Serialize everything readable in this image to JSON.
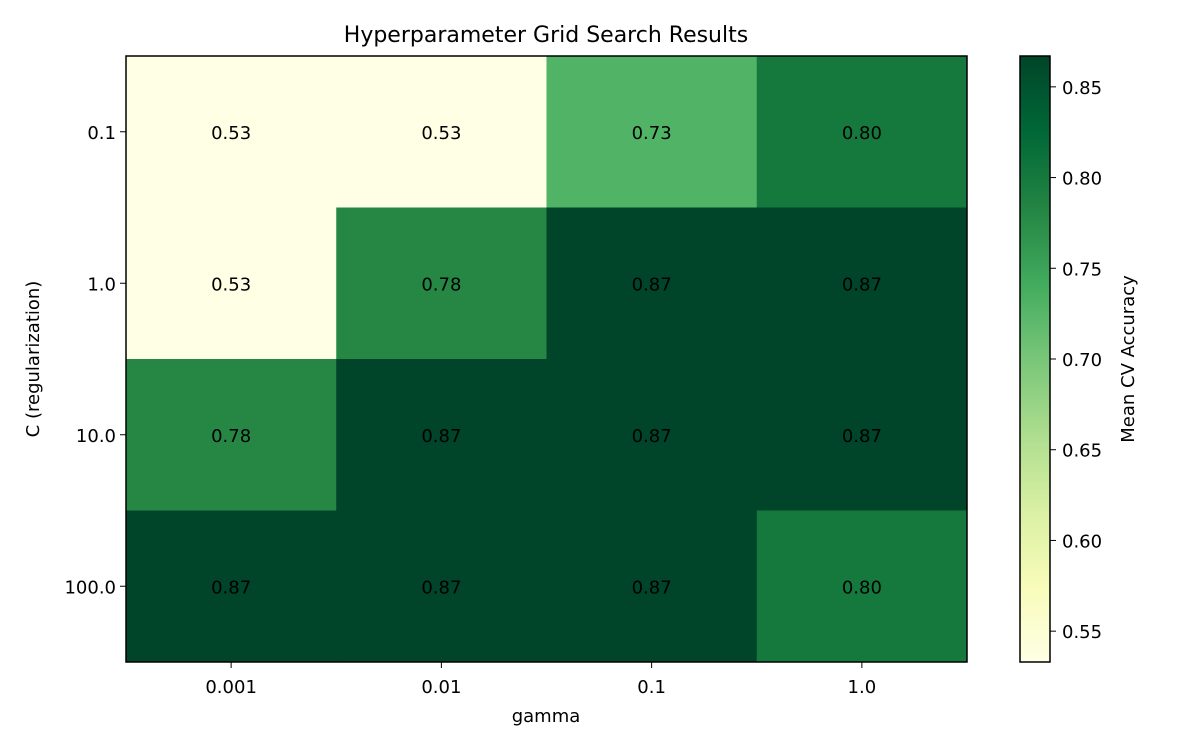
{
  "chart_data": {
    "type": "heatmap",
    "title": "Hyperparameter Grid Search Results",
    "xlabel": "gamma",
    "ylabel": "C (regularization)",
    "x_categories": [
      "0.001",
      "0.01",
      "0.1",
      "1.0"
    ],
    "y_categories": [
      "0.1",
      "1.0",
      "10.0",
      "100.0"
    ],
    "values": [
      [
        0.53,
        0.53,
        0.73,
        0.8
      ],
      [
        0.53,
        0.78,
        0.87,
        0.87
      ],
      [
        0.78,
        0.87,
        0.87,
        0.87
      ],
      [
        0.87,
        0.87,
        0.87,
        0.8
      ]
    ],
    "value_format": "2 decimals",
    "colormap": "YlGn",
    "colormap_stops": [
      "#ffffe5",
      "#f7fcb9",
      "#d9f0a3",
      "#addd8e",
      "#78c679",
      "#41ab5d",
      "#238443",
      "#006837",
      "#004529"
    ],
    "colorbar": {
      "label": "Mean CV Accuracy",
      "range": [
        0.533,
        0.867
      ],
      "ticks": [
        "0.55",
        "0.60",
        "0.65",
        "0.70",
        "0.75",
        "0.80",
        "0.85"
      ]
    }
  }
}
